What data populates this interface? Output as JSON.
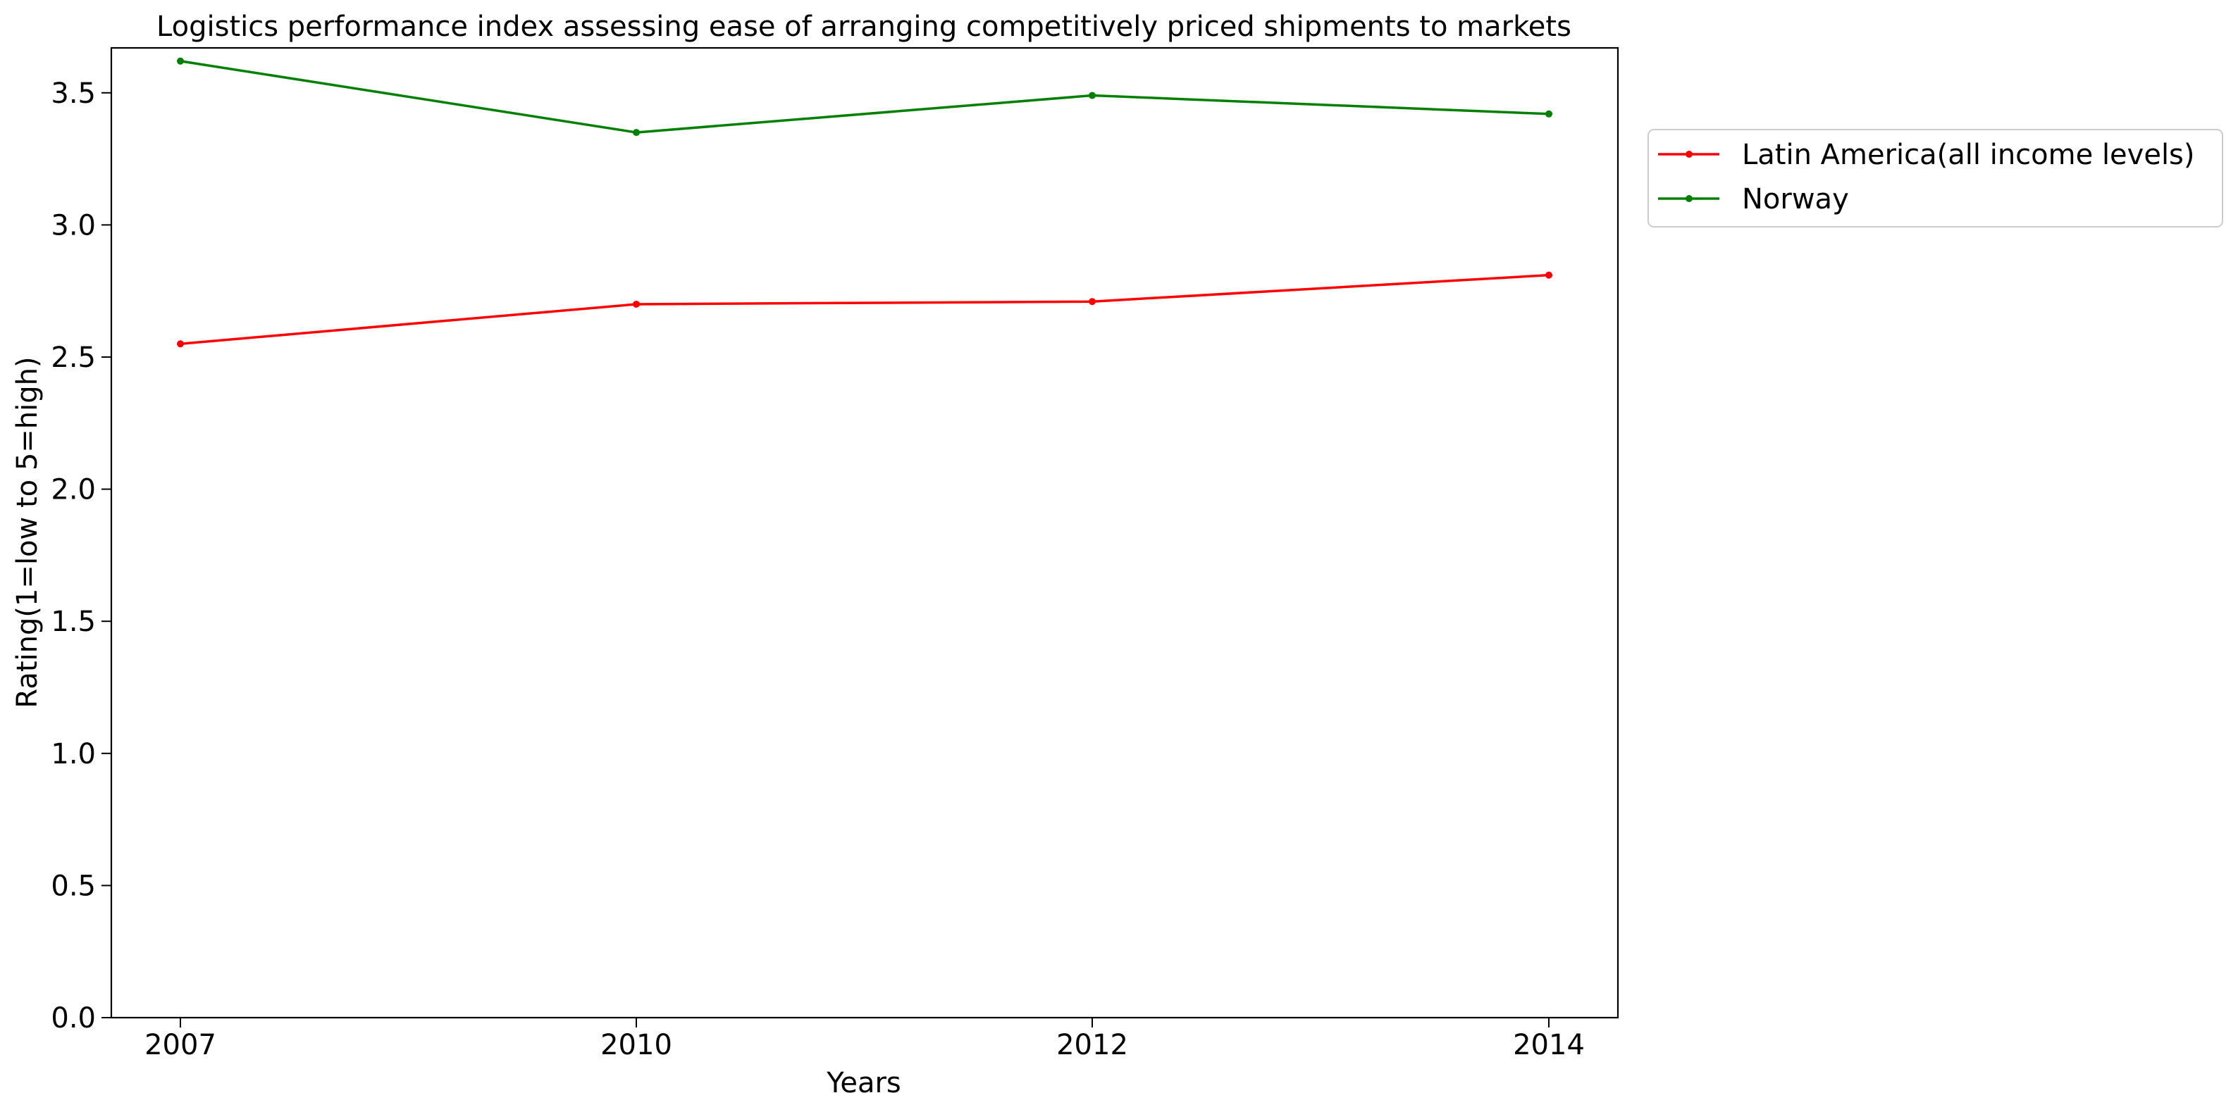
{
  "chart_data": {
    "type": "line",
    "title": "Logistics performance index assessing ease of arranging competitively priced shipments to markets",
    "xlabel": "Years",
    "ylabel": "Rating(1=low to 5=high)",
    "categories": [
      "2007",
      "2010",
      "2012",
      "2014"
    ],
    "ylim": [
      0,
      3.67
    ],
    "yticks": [
      "0.0",
      "0.5",
      "1.0",
      "1.5",
      "2.0",
      "2.5",
      "3.0",
      "3.5"
    ],
    "grid": false,
    "legend_position": "outside-top-right",
    "series": [
      {
        "name": "Latin America(all income levels)",
        "color": "#ff0000",
        "values": [
          2.55,
          2.7,
          2.71,
          2.81
        ]
      },
      {
        "name": "Norway",
        "color": "#008000",
        "values": [
          3.62,
          3.35,
          3.49,
          3.42
        ]
      }
    ]
  }
}
